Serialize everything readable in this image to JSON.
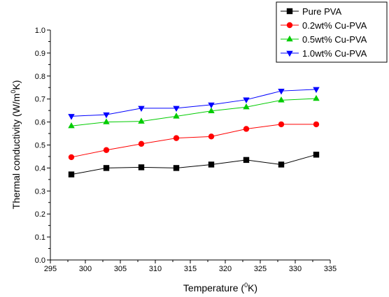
{
  "chart_data": {
    "type": "line",
    "title": "",
    "xlabel": "Temperature (",
    "xlabel_sup": "0",
    "xlabel_end": "K)",
    "ylabel": "Thermal conductivity (W/m",
    "ylabel_sup": "0",
    "ylabel_end": "K)",
    "xlim": [
      295,
      335
    ],
    "ylim": [
      0.0,
      1.0
    ],
    "xticks": [
      "295",
      "300",
      "305",
      "310",
      "315",
      "320",
      "325",
      "330",
      "335"
    ],
    "yticks": [
      "0.0",
      "0.1",
      "0.2",
      "0.3",
      "0.4",
      "0.5",
      "0.6",
      "0.7",
      "0.8",
      "0.9",
      "1.0"
    ],
    "grid": false,
    "legend_position": "top-right",
    "x": [
      298,
      303,
      308,
      313,
      318,
      323,
      328,
      333
    ],
    "series": [
      {
        "name": "Pure PVA",
        "color": "#000000",
        "marker": "square",
        "values": [
          0.372,
          0.4,
          0.403,
          0.4,
          0.415,
          0.435,
          0.415,
          0.458
        ]
      },
      {
        "name": "0.2wt% Cu-PVA",
        "color": "#ff0000",
        "marker": "circle",
        "values": [
          0.447,
          0.478,
          0.505,
          0.53,
          0.537,
          0.57,
          0.59,
          0.59
        ]
      },
      {
        "name": "0.5wt% Cu-PVA",
        "color": "#00cc00",
        "marker": "triangle-up",
        "values": [
          0.583,
          0.6,
          0.603,
          0.625,
          0.648,
          0.665,
          0.695,
          0.702
        ]
      },
      {
        "name": "1.0wt% Cu-PVA",
        "color": "#0000ff",
        "marker": "triangle-down",
        "values": [
          0.625,
          0.632,
          0.66,
          0.66,
          0.675,
          0.697,
          0.735,
          0.742
        ]
      }
    ]
  }
}
